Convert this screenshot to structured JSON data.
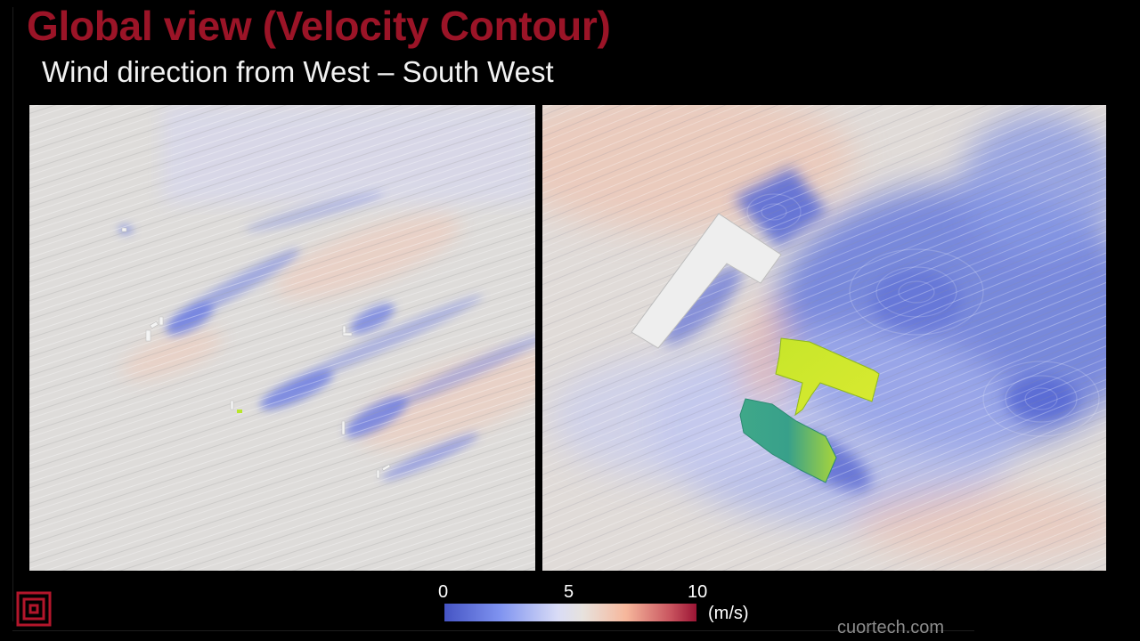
{
  "slide": {
    "title": "Global view (Velocity Contour)",
    "subtitle": "Wind direction from West – South West"
  },
  "colorbar": {
    "ticks": [
      "0",
      "5",
      "10"
    ],
    "unit": "(m/s)",
    "colors": [
      "#4554c4",
      "#d9dcf6",
      "#e7e2dd",
      "#f6b79c",
      "#9b1434"
    ]
  },
  "panels": [
    {
      "name": "left-panel-site-overview"
    },
    {
      "name": "right-panel-zoomed-buildings"
    }
  ],
  "footer": {
    "brand": "cuortech.com"
  },
  "logo": {
    "icon": "concentric-square-logo-icon",
    "color": "#b3162b"
  }
}
